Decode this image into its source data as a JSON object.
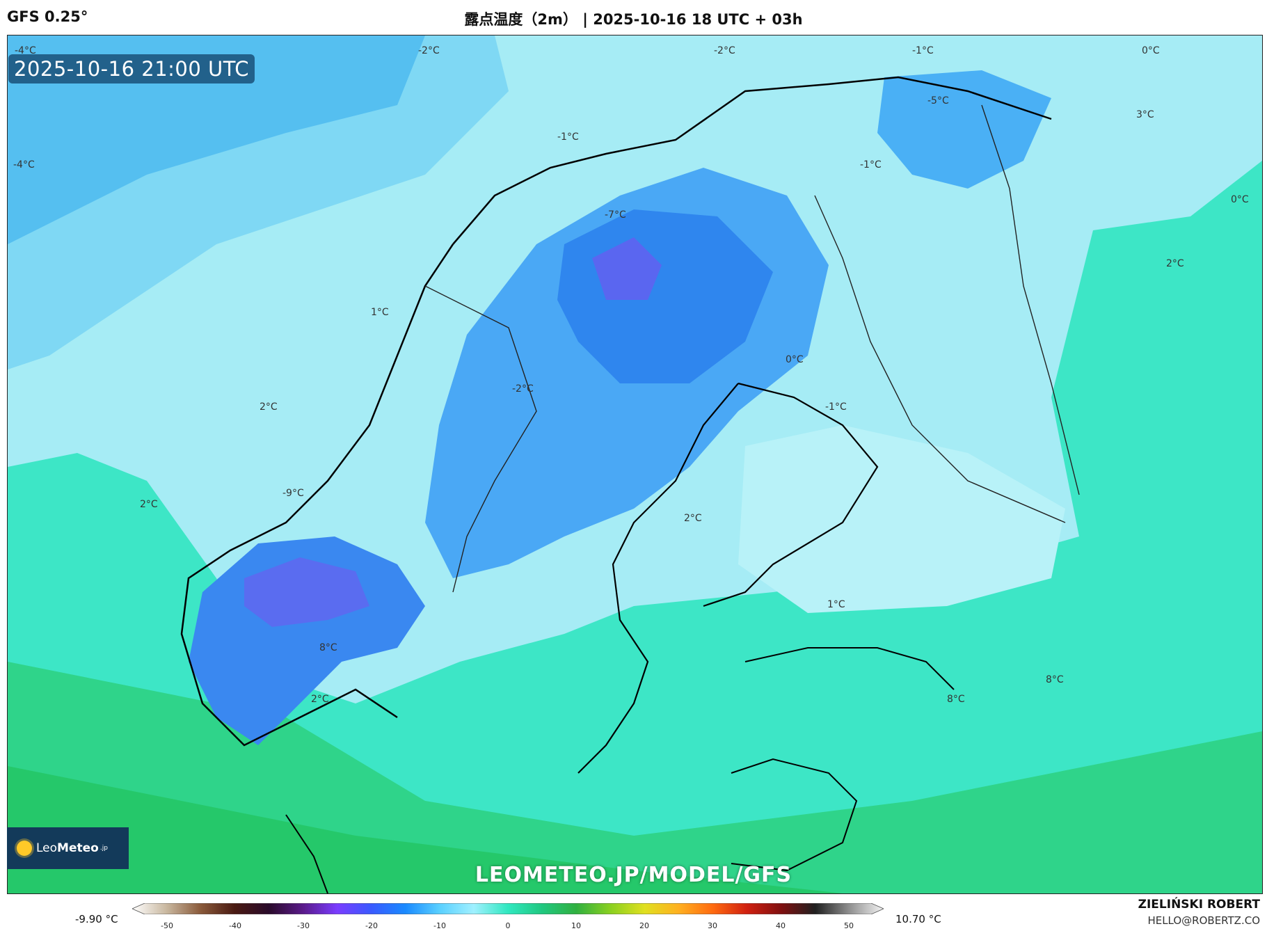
{
  "header": {
    "model": "GFS 0.25°",
    "title": "露点温度（2m） | 2025-10-16 18 UTC + 03h"
  },
  "map": {
    "valid_time": "2025-10-16 21:00 UTC",
    "watermark": "LEOMETEO.JP/MODEL/GFS",
    "contour_labels": [
      "-4°C",
      "-2°C",
      "-2°C",
      "-1°C",
      "0°C",
      "-5°C",
      "3°C",
      "-4°C",
      "-1°C",
      "-1°C",
      "0°C",
      "-7°C",
      "2°C",
      "1°C",
      "0°C",
      "-2°C",
      "-1°C",
      "2°C",
      "-9°C",
      "2°C",
      "2°C",
      "1°C",
      "8°C",
      "8°C",
      "2°C",
      "8°C"
    ]
  },
  "logo": {
    "prefix": "Leo",
    "brand": "Meteo",
    "suffix": ".jp"
  },
  "legend": {
    "min_label": "-9.90 °C",
    "max_label": "10.70 °C",
    "ticks": [
      "-50",
      "-40",
      "-30",
      "-20",
      "-10",
      "0",
      "10",
      "20",
      "30",
      "40",
      "50"
    ],
    "colors": [
      "#ffffff",
      "#c9b8a0",
      "#8a5a3a",
      "#4a1a12",
      "#2a0a2a",
      "#5a1a8a",
      "#7a3cff",
      "#3a5aff",
      "#1a8aff",
      "#5ad0ff",
      "#a0f0ff",
      "#30e8c0",
      "#20c880",
      "#30b040",
      "#8ad020",
      "#e0e020",
      "#ffb020",
      "#ff6a10",
      "#d02010",
      "#801010",
      "#202020",
      "#909090",
      "#f4f4f4"
    ]
  },
  "footer": {
    "author": "ZIELIŃSKI ROBERT",
    "email": "HELLO@ROBERTZ.CO"
  }
}
